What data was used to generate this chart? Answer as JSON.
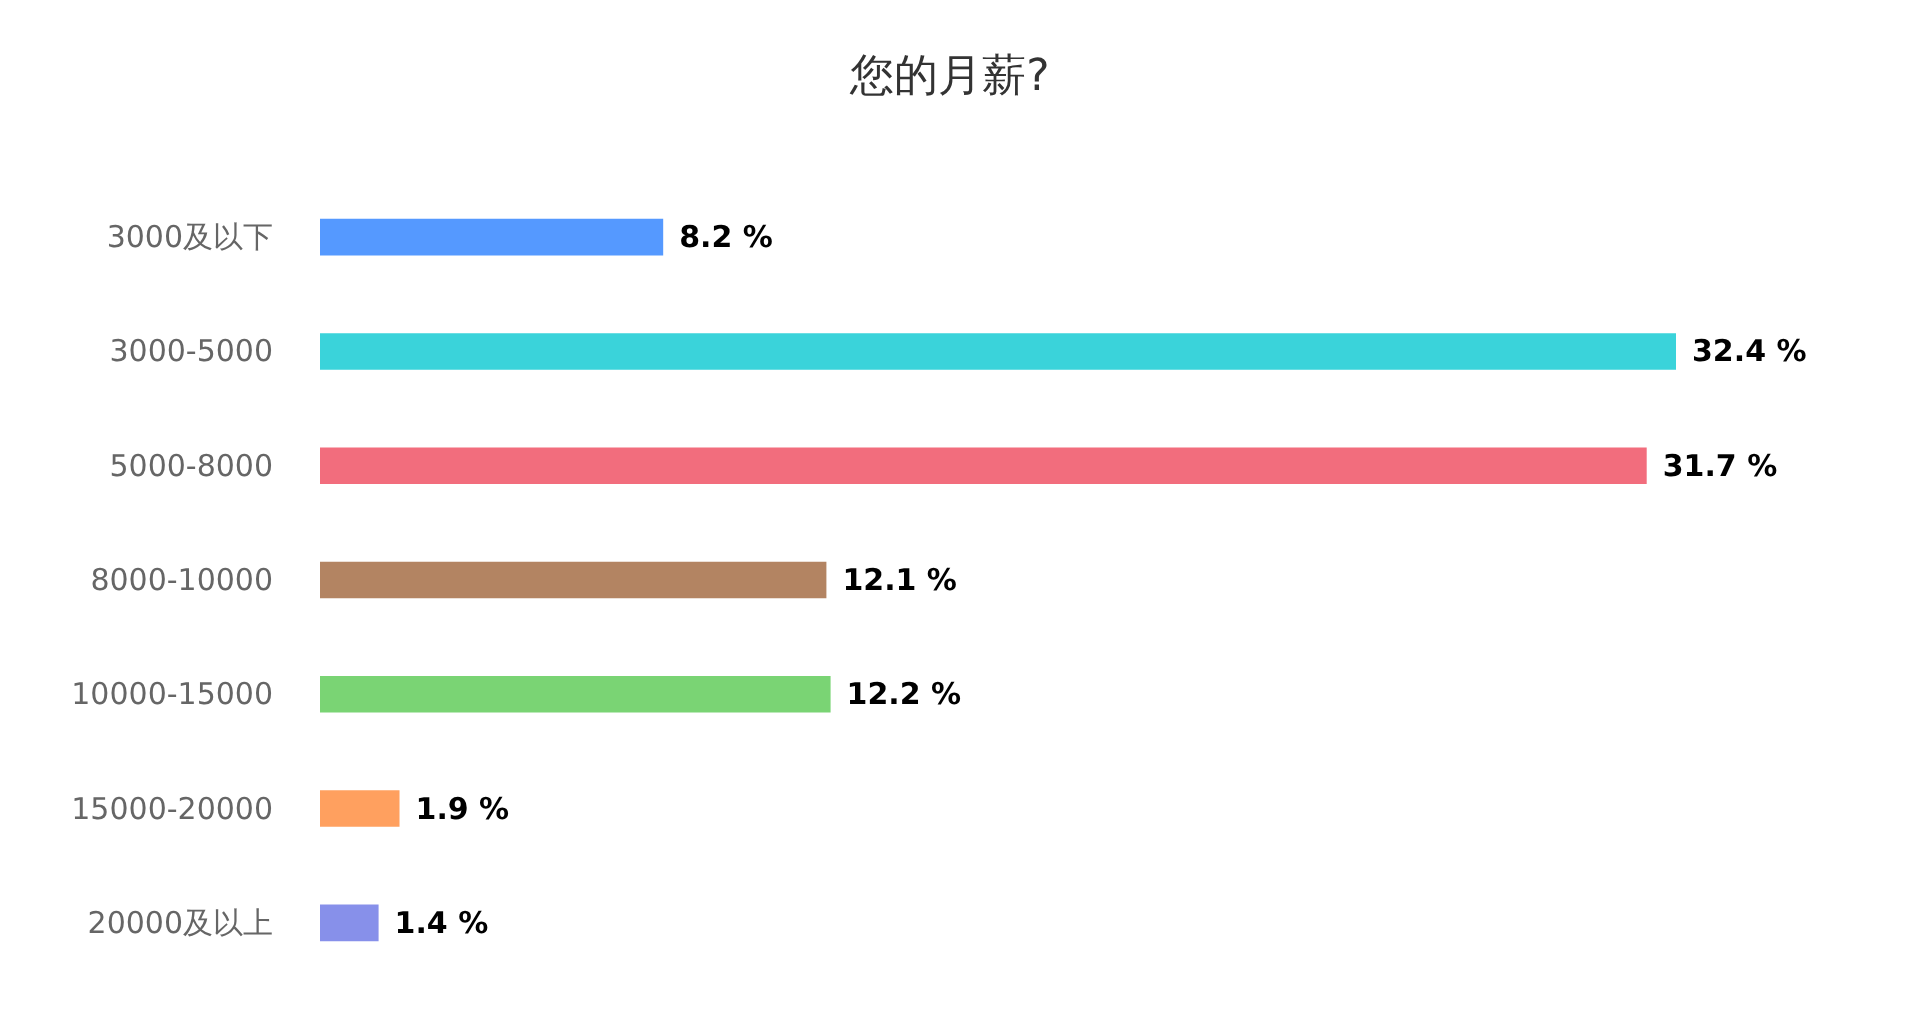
{
  "chart_data": {
    "type": "bar",
    "title": "您的月薪?",
    "orientation": "horizontal",
    "categories": [
      "3000及以下",
      "3000-5000",
      "5000-8000",
      "8000-10000",
      "10000-15000",
      "15000-20000",
      "20000及以上"
    ],
    "values": [
      8.2,
      32.4,
      31.7,
      12.1,
      12.2,
      1.9,
      1.4
    ],
    "colors": [
      "#5599ff",
      "#3ad3da",
      "#f26d7d",
      "#b38462",
      "#7ad474",
      "#ffa05f",
      "#8790ea"
    ],
    "value_labels": [
      "8.2 %",
      "32.4 %",
      "31.7 %",
      "12.1 %",
      "12.2 %",
      "1.9 %",
      "1.4 %"
    ]
  }
}
